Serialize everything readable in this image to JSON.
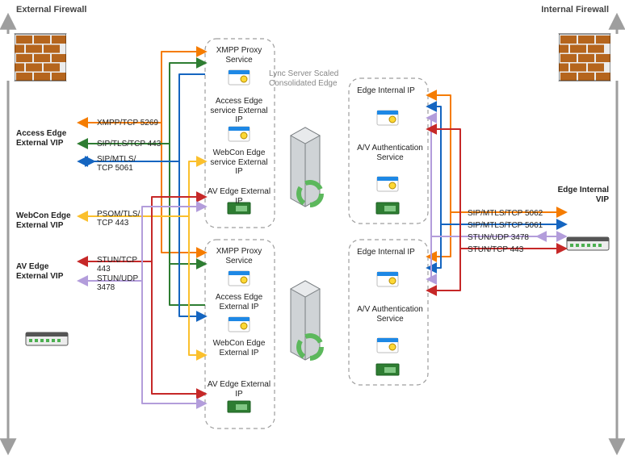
{
  "diagram": {
    "type": "network",
    "title": "Lync Server Scaled Consolidated Edge",
    "firewalls": {
      "external": "External Firewall",
      "internal": "Internal Firewall"
    },
    "vips": {
      "access_edge_external": "Access Edge External VIP",
      "webcon_edge_external": "WebCon Edge External VIP",
      "av_edge_external": "AV Edge External VIP",
      "edge_internal": "Edge Internal VIP"
    },
    "protocols_left": {
      "xmpp": {
        "label": "XMPP/TCP 5269",
        "color": "#f57c00"
      },
      "sip_tls": {
        "label": "SIP/TLS/TCP 443",
        "color": "#2e7d32"
      },
      "sip_mtls": {
        "label": "SIP/MTLS/ TCP 5061",
        "color": "#1565c0"
      },
      "psom": {
        "label": "PSOM/TLS/ TCP 443",
        "color": "#fbc02d"
      },
      "stun_tcp": {
        "label": "STUN/TCP 443",
        "color": "#c62828"
      },
      "stun_udp": {
        "label": "STUN/UDP 3478",
        "color": "#b39ddb"
      }
    },
    "protocols_right": {
      "sip_mtls_5062": {
        "label": "SIP/MTLS/TCP 5062",
        "color": "#f57c00"
      },
      "sip_mtls_5061": {
        "label": "SIP/MTLS/TCP 5061",
        "color": "#1565c0"
      },
      "stun_udp": {
        "label": "STUN/UDP 3478",
        "color": "#b39ddb"
      },
      "stun_tcp": {
        "label": "STUN/TCP 443",
        "color": "#c62828"
      }
    },
    "edge_pool": {
      "xmpp_proxy": "XMPP Proxy Service",
      "access_edge": "Access Edge service External IP",
      "webcon_edge": "WebCon Edge service External IP",
      "av_edge": "AV Edge External IP",
      "access_edge2": "Access Edge External IP",
      "webcon_edge2": "WebCon Edge External IP",
      "av_edge2": "AV Edge External IP"
    },
    "internal_pool": {
      "edge_internal_ip": "Edge Internal IP",
      "av_auth": "A/V Authentication Service"
    },
    "colors": {
      "firewall_axis": "#9e9e9e",
      "dashed_box": "#9e9e9e",
      "firewall_brick": "#b5651d",
      "firewall_mortar": "#ececec",
      "server_body": "#cfd3d6",
      "server_dark": "#7a7f82",
      "server_green": "#5cb85c",
      "card": "#ffffff",
      "card_border": "#bdbdbd",
      "card_accent": "#1e88e5",
      "highlight": "#fdd835"
    },
    "line_width": 2
  }
}
